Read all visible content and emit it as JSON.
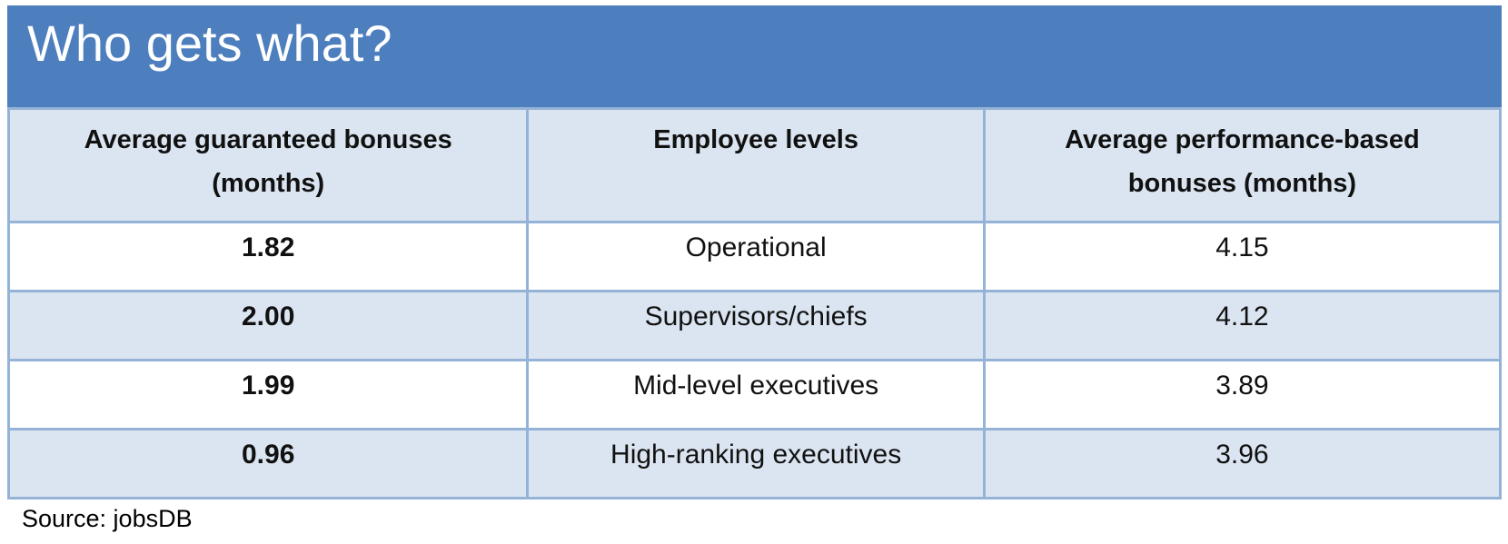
{
  "colors": {
    "title_bg": "#4d7ebd",
    "band": "#dbe5f1",
    "border": "#95b3d7",
    "title_text": "#ffffff"
  },
  "header": {
    "title": "Who gets what?"
  },
  "table": {
    "columns": {
      "guaranteed": "Average guaranteed bonuses (months)",
      "level": "Employee levels",
      "performance": "Average performance-based bonuses (months)"
    },
    "rows": [
      {
        "guaranteed": "1.82",
        "level": "Operational",
        "performance": "4.15"
      },
      {
        "guaranteed": "2.00",
        "level": "Supervisors/chiefs",
        "performance": "4.12"
      },
      {
        "guaranteed": "1.99",
        "level": "Mid-level executives",
        "performance": "3.89"
      },
      {
        "guaranteed": "0.96",
        "level": "High-ranking executives",
        "performance": "3.96"
      }
    ]
  },
  "footer": {
    "source": "Source: jobsDB"
  },
  "chart_data": {
    "type": "table",
    "title": "Who gets what?",
    "columns": [
      "Average guaranteed bonuses (months)",
      "Employee levels",
      "Average performance-based bonuses (months)"
    ],
    "rows": [
      [
        1.82,
        "Operational",
        4.15
      ],
      [
        2.0,
        "Supervisors/chiefs",
        4.12
      ],
      [
        1.99,
        "Mid-level executives",
        3.89
      ],
      [
        0.96,
        "High-ranking executives",
        3.96
      ]
    ],
    "source": "Source: jobsDB",
    "layout": {
      "banded_rows": true,
      "header_background": "#dbe5f1",
      "band_background": "#dbe5f1",
      "title_background": "#4d7ebd"
    }
  }
}
